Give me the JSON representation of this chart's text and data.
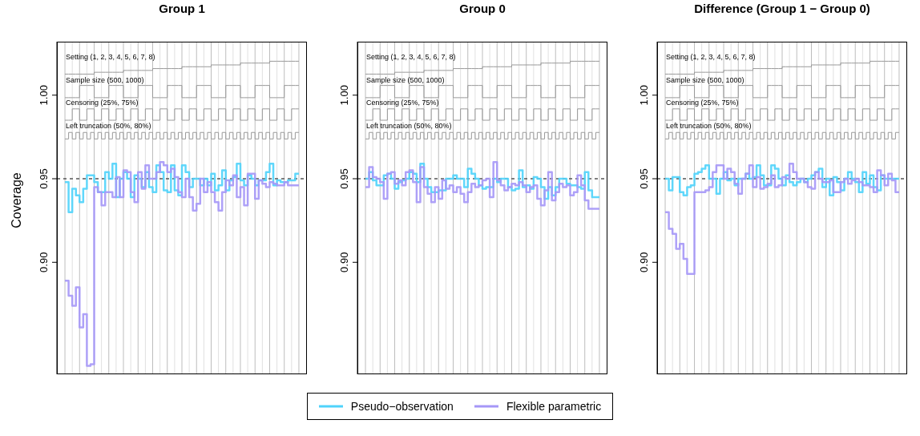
{
  "chart_data": [
    {
      "type": "step",
      "title": "Group 1",
      "ylabel": "Coverage",
      "categories": [
        null,
        null,
        null,
        null,
        null,
        null,
        null,
        null,
        null,
        null,
        null,
        null,
        null,
        null,
        null,
        null,
        null,
        null,
        null,
        null,
        null,
        null,
        null,
        null,
        null,
        null,
        null,
        null,
        null,
        null,
        null,
        null,
        null,
        null,
        null,
        null,
        null,
        null,
        null,
        null,
        null,
        null,
        null,
        null,
        null,
        null,
        null,
        null,
        null,
        null,
        null,
        null,
        null,
        null,
        null,
        null,
        null,
        null,
        null,
        null,
        null,
        null,
        null,
        null
      ],
      "ylim": [
        0.833,
        1.032
      ],
      "yticks": [
        {
          "value": 0.9,
          "label": "0.90"
        },
        {
          "value": 0.95,
          "label": "0.95"
        },
        {
          "value": 1.0,
          "label": "1.00"
        }
      ],
      "grid": "x",
      "marker": "none",
      "line_style": "solid",
      "legend": "bottom",
      "ref_lines": [
        {
          "axis": "y",
          "value": 0.95,
          "color": "#555555",
          "line_style": "dashed"
        }
      ],
      "annotations": [
        "Setting (1, 2, 3, 4, 5, 6, 7, 8)",
        "Sample size (500, 1000)",
        "Censoring (25%, 75%)",
        "Left truncation (50%, 80%)"
      ],
      "series": [
        {
          "color": "#999999",
          "values": [
            1.0126,
            1.0126,
            1.0126,
            1.0126,
            1.0126,
            1.0126,
            1.0126,
            1.0126,
            1.0137,
            1.0137,
            1.0137,
            1.0137,
            1.0137,
            1.0137,
            1.0137,
            1.0137,
            1.0148,
            1.0148,
            1.0148,
            1.0148,
            1.0148,
            1.0148,
            1.0148,
            1.0148,
            1.0159,
            1.0159,
            1.0159,
            1.0159,
            1.0159,
            1.0159,
            1.0159,
            1.0159,
            1.017,
            1.017,
            1.017,
            1.017,
            1.017,
            1.017,
            1.017,
            1.017,
            1.0181,
            1.0181,
            1.0181,
            1.0181,
            1.0181,
            1.0181,
            1.0181,
            1.0181,
            1.0192,
            1.0192,
            1.0192,
            1.0192,
            1.0192,
            1.0192,
            1.0192,
            1.0192,
            1.0203,
            1.0203,
            1.0203,
            1.0203,
            1.0203,
            1.0203,
            1.0203,
            1.0203
          ]
        },
        {
          "color": "#999999",
          "values": [
            0.9985,
            0.9985,
            0.9985,
            0.9985,
            1.0058,
            1.0058,
            1.0058,
            1.0058,
            0.9985,
            0.9985,
            0.9985,
            0.9985,
            1.0058,
            1.0058,
            1.0058,
            1.0058,
            0.9985,
            0.9985,
            0.9985,
            0.9985,
            1.0058,
            1.0058,
            1.0058,
            1.0058,
            0.9985,
            0.9985,
            0.9985,
            0.9985,
            1.0058,
            1.0058,
            1.0058,
            1.0058,
            0.9985,
            0.9985,
            0.9985,
            0.9985,
            1.0058,
            1.0058,
            1.0058,
            1.0058,
            0.9985,
            0.9985,
            0.9985,
            0.9985,
            1.0058,
            1.0058,
            1.0058,
            1.0058,
            0.9985,
            0.9985,
            0.9985,
            0.9985,
            1.0058,
            1.0058,
            1.0058,
            1.0058,
            0.9985,
            0.9985,
            0.9985,
            0.9985,
            1.0058,
            1.0058,
            1.0058,
            1.0058
          ]
        },
        {
          "color": "#999999",
          "values": [
            0.985,
            0.985,
            0.9918,
            0.9918,
            0.985,
            0.985,
            0.9918,
            0.9918,
            0.985,
            0.985,
            0.9918,
            0.9918,
            0.985,
            0.985,
            0.9918,
            0.9918,
            0.985,
            0.985,
            0.9918,
            0.9918,
            0.985,
            0.985,
            0.9918,
            0.9918,
            0.985,
            0.985,
            0.9918,
            0.9918,
            0.985,
            0.985,
            0.9918,
            0.9918,
            0.985,
            0.985,
            0.9918,
            0.9918,
            0.985,
            0.985,
            0.9918,
            0.9918,
            0.985,
            0.985,
            0.9918,
            0.9918,
            0.985,
            0.985,
            0.9918,
            0.9918,
            0.985,
            0.985,
            0.9918,
            0.9918,
            0.985,
            0.985,
            0.9918,
            0.9918,
            0.985,
            0.985,
            0.9918,
            0.9918,
            0.985,
            0.985,
            0.9918,
            0.9918
          ]
        },
        {
          "color": "#999999",
          "values": [
            0.9738,
            0.9777,
            0.9738,
            0.9777,
            0.9738,
            0.9777,
            0.9738,
            0.9777,
            0.9738,
            0.9777,
            0.9738,
            0.9777,
            0.9738,
            0.9777,
            0.9738,
            0.9777,
            0.9738,
            0.9777,
            0.9738,
            0.9777,
            0.9738,
            0.9777,
            0.9738,
            0.9777,
            0.9738,
            0.9777,
            0.9738,
            0.9777,
            0.9738,
            0.9777,
            0.9738,
            0.9777,
            0.9738,
            0.9777,
            0.9738,
            0.9777,
            0.9738,
            0.9777,
            0.9738,
            0.9777,
            0.9738,
            0.9777,
            0.9738,
            0.9777,
            0.9738,
            0.9777,
            0.9738,
            0.9777,
            0.9738,
            0.9777,
            0.9738,
            0.9777,
            0.9738,
            0.9777,
            0.9738,
            0.9777,
            0.9738,
            0.9777,
            0.9738,
            0.9777,
            0.9738,
            0.9777,
            0.9738,
            0.9777
          ]
        },
        {
          "name": "Pseudo−observation",
          "color": "#4fd3fb",
          "values": [
            0.948,
            0.93,
            0.944,
            0.94,
            0.936,
            0.944,
            0.952,
            0.952,
            0.948,
            0.942,
            0.942,
            0.954,
            0.95,
            0.959,
            0.939,
            0.95,
            0.954,
            0.95,
            0.939,
            0.952,
            0.95,
            0.945,
            0.954,
            0.945,
            0.942,
            0.958,
            0.954,
            0.943,
            0.942,
            0.958,
            0.943,
            0.94,
            0.958,
            0.954,
            0.945,
            0.95,
            0.95,
            0.946,
            0.95,
            0.946,
            0.953,
            0.943,
            0.946,
            0.955,
            0.943,
            0.949,
            0.951,
            0.959,
            0.949,
            0.946,
            0.952,
            0.95,
            0.946,
            0.949,
            0.949,
            0.954,
            0.959,
            0.946,
            0.949,
            0.948,
            0.948,
            0.949,
            0.949,
            0.953
          ]
        },
        {
          "name": "Flexible parametric",
          "color": "#a597f7",
          "values": [
            0.889,
            0.88,
            0.874,
            0.885,
            0.861,
            0.869,
            0.838,
            0.839,
            0.945,
            0.942,
            0.934,
            0.942,
            0.942,
            0.939,
            0.951,
            0.939,
            0.955,
            0.954,
            0.942,
            0.936,
            0.954,
            0.944,
            0.958,
            0.95,
            0.95,
            0.954,
            0.96,
            0.958,
            0.954,
            0.956,
            0.951,
            0.942,
            0.939,
            0.95,
            0.939,
            0.931,
            0.935,
            0.95,
            0.942,
            0.948,
            0.942,
            0.936,
            0.931,
            0.942,
            0.949,
            0.946,
            0.952,
            0.939,
            0.945,
            0.934,
            0.953,
            0.953,
            0.938,
            0.949,
            0.947,
            0.945,
            0.948,
            0.947,
            0.946,
            0.946,
            0.948,
            0.946,
            0.946,
            0.946
          ]
        }
      ]
    },
    {
      "type": "step",
      "title": "Group 0",
      "categories": [
        null,
        null,
        null,
        null,
        null,
        null,
        null,
        null,
        null,
        null,
        null,
        null,
        null,
        null,
        null,
        null,
        null,
        null,
        null,
        null,
        null,
        null,
        null,
        null,
        null,
        null,
        null,
        null,
        null,
        null,
        null,
        null,
        null,
        null,
        null,
        null,
        null,
        null,
        null,
        null,
        null,
        null,
        null,
        null,
        null,
        null,
        null,
        null,
        null,
        null,
        null,
        null,
        null,
        null,
        null,
        null,
        null,
        null,
        null,
        null,
        null,
        null,
        null,
        null
      ],
      "ylim": [
        0.833,
        1.032
      ],
      "yticks": [
        {
          "value": 0.9,
          "label": "0.90"
        },
        {
          "value": 0.95,
          "label": "0.95"
        },
        {
          "value": 1.0,
          "label": "1.00"
        }
      ],
      "grid": "x",
      "marker": "none",
      "line_style": "solid",
      "ref_lines": [
        {
          "axis": "y",
          "value": 0.95,
          "color": "#555555",
          "line_style": "dashed"
        }
      ],
      "annotations": [
        "Setting (1, 2, 3, 4, 5, 6, 7, 8)",
        "Sample size (500, 1000)",
        "Censoring (25%, 75%)",
        "Left truncation (50%, 80%)"
      ],
      "series": [
        {
          "color": "#999999",
          "values": [
            1.0126,
            1.0126,
            1.0126,
            1.0126,
            1.0126,
            1.0126,
            1.0126,
            1.0126,
            1.0137,
            1.0137,
            1.0137,
            1.0137,
            1.0137,
            1.0137,
            1.0137,
            1.0137,
            1.0148,
            1.0148,
            1.0148,
            1.0148,
            1.0148,
            1.0148,
            1.0148,
            1.0148,
            1.0159,
            1.0159,
            1.0159,
            1.0159,
            1.0159,
            1.0159,
            1.0159,
            1.0159,
            1.017,
            1.017,
            1.017,
            1.017,
            1.017,
            1.017,
            1.017,
            1.017,
            1.0181,
            1.0181,
            1.0181,
            1.0181,
            1.0181,
            1.0181,
            1.0181,
            1.0181,
            1.0192,
            1.0192,
            1.0192,
            1.0192,
            1.0192,
            1.0192,
            1.0192,
            1.0192,
            1.0203,
            1.0203,
            1.0203,
            1.0203,
            1.0203,
            1.0203,
            1.0203,
            1.0203
          ]
        },
        {
          "color": "#999999",
          "values": [
            0.9985,
            0.9985,
            0.9985,
            0.9985,
            1.0058,
            1.0058,
            1.0058,
            1.0058,
            0.9985,
            0.9985,
            0.9985,
            0.9985,
            1.0058,
            1.0058,
            1.0058,
            1.0058,
            0.9985,
            0.9985,
            0.9985,
            0.9985,
            1.0058,
            1.0058,
            1.0058,
            1.0058,
            0.9985,
            0.9985,
            0.9985,
            0.9985,
            1.0058,
            1.0058,
            1.0058,
            1.0058,
            0.9985,
            0.9985,
            0.9985,
            0.9985,
            1.0058,
            1.0058,
            1.0058,
            1.0058,
            0.9985,
            0.9985,
            0.9985,
            0.9985,
            1.0058,
            1.0058,
            1.0058,
            1.0058,
            0.9985,
            0.9985,
            0.9985,
            0.9985,
            1.0058,
            1.0058,
            1.0058,
            1.0058,
            0.9985,
            0.9985,
            0.9985,
            0.9985,
            1.0058,
            1.0058,
            1.0058,
            1.0058
          ]
        },
        {
          "color": "#999999",
          "values": [
            0.985,
            0.985,
            0.9918,
            0.9918,
            0.985,
            0.985,
            0.9918,
            0.9918,
            0.985,
            0.985,
            0.9918,
            0.9918,
            0.985,
            0.985,
            0.9918,
            0.9918,
            0.985,
            0.985,
            0.9918,
            0.9918,
            0.985,
            0.985,
            0.9918,
            0.9918,
            0.985,
            0.985,
            0.9918,
            0.9918,
            0.985,
            0.985,
            0.9918,
            0.9918,
            0.985,
            0.985,
            0.9918,
            0.9918,
            0.985,
            0.985,
            0.9918,
            0.9918,
            0.985,
            0.985,
            0.9918,
            0.9918,
            0.985,
            0.985,
            0.9918,
            0.9918,
            0.985,
            0.985,
            0.9918,
            0.9918,
            0.985,
            0.985,
            0.9918,
            0.9918,
            0.985,
            0.985,
            0.9918,
            0.9918,
            0.985,
            0.985,
            0.9918,
            0.9918
          ]
        },
        {
          "color": "#999999",
          "values": [
            0.9738,
            0.9777,
            0.9738,
            0.9777,
            0.9738,
            0.9777,
            0.9738,
            0.9777,
            0.9738,
            0.9777,
            0.9738,
            0.9777,
            0.9738,
            0.9777,
            0.9738,
            0.9777,
            0.9738,
            0.9777,
            0.9738,
            0.9777,
            0.9738,
            0.9777,
            0.9738,
            0.9777,
            0.9738,
            0.9777,
            0.9738,
            0.9777,
            0.9738,
            0.9777,
            0.9738,
            0.9777,
            0.9738,
            0.9777,
            0.9738,
            0.9777,
            0.9738,
            0.9777,
            0.9738,
            0.9777,
            0.9738,
            0.9777,
            0.9738,
            0.9777,
            0.9738,
            0.9777,
            0.9738,
            0.9777,
            0.9738,
            0.9777,
            0.9738,
            0.9777,
            0.9738,
            0.9777,
            0.9738,
            0.9777,
            0.9738,
            0.9777,
            0.9738,
            0.9777,
            0.9738,
            0.9777,
            0.9738,
            0.9777
          ]
        },
        {
          "color": "#4fd3fb",
          "values": [
            0.95,
            0.954,
            0.949,
            0.946,
            0.946,
            0.952,
            0.953,
            0.95,
            0.944,
            0.948,
            0.949,
            0.95,
            0.954,
            0.953,
            0.948,
            0.959,
            0.95,
            0.945,
            0.942,
            0.942,
            0.943,
            0.943,
            0.95,
            0.95,
            0.952,
            0.95,
            0.95,
            0.945,
            0.956,
            0.953,
            0.95,
            0.946,
            0.944,
            0.945,
            0.945,
            0.95,
            0.948,
            0.95,
            0.95,
            0.945,
            0.943,
            0.944,
            0.955,
            0.945,
            0.946,
            0.944,
            0.951,
            0.95,
            0.945,
            0.938,
            0.945,
            0.94,
            0.945,
            0.95,
            0.95,
            0.947,
            0.946,
            0.946,
            0.945,
            0.944,
            0.954,
            0.943,
            0.939,
            0.939
          ]
        },
        {
          "color": "#a597f7",
          "values": [
            0.945,
            0.957,
            0.951,
            0.95,
            0.948,
            0.938,
            0.953,
            0.954,
            0.947,
            0.949,
            0.946,
            0.954,
            0.955,
            0.948,
            0.936,
            0.957,
            0.945,
            0.941,
            0.936,
            0.945,
            0.938,
            0.949,
            0.944,
            0.946,
            0.942,
            0.945,
            0.941,
            0.936,
            0.942,
            0.947,
            0.945,
            0.946,
            0.949,
            0.95,
            0.939,
            0.96,
            0.949,
            0.946,
            0.943,
            0.945,
            0.947,
            0.946,
            0.948,
            0.946,
            0.942,
            0.945,
            0.946,
            0.938,
            0.934,
            0.943,
            0.954,
            0.937,
            0.942,
            0.947,
            0.945,
            0.946,
            0.94,
            0.942,
            0.952,
            0.946,
            0.937,
            0.932,
            0.932,
            0.932
          ]
        }
      ]
    },
    {
      "type": "step",
      "title": "Difference (Group 1 − Group 0)",
      "categories": [
        null,
        null,
        null,
        null,
        null,
        null,
        null,
        null,
        null,
        null,
        null,
        null,
        null,
        null,
        null,
        null,
        null,
        null,
        null,
        null,
        null,
        null,
        null,
        null,
        null,
        null,
        null,
        null,
        null,
        null,
        null,
        null,
        null,
        null,
        null,
        null,
        null,
        null,
        null,
        null,
        null,
        null,
        null,
        null,
        null,
        null,
        null,
        null,
        null,
        null,
        null,
        null,
        null,
        null,
        null,
        null,
        null,
        null,
        null,
        null,
        null,
        null,
        null,
        null
      ],
      "ylim": [
        0.833,
        1.032
      ],
      "yticks": [
        {
          "value": 0.9,
          "label": "0.90"
        },
        {
          "value": 0.95,
          "label": "0.95"
        },
        {
          "value": 1.0,
          "label": "1.00"
        }
      ],
      "grid": "x",
      "marker": "none",
      "line_style": "solid",
      "ref_lines": [
        {
          "axis": "y",
          "value": 0.95,
          "color": "#555555",
          "line_style": "dashed"
        }
      ],
      "annotations": [
        "Setting (1, 2, 3, 4, 5, 6, 7, 8)",
        "Sample size (500, 1000)",
        "Censoring (25%, 75%)",
        "Left truncation (50%, 80%)"
      ],
      "series": [
        {
          "color": "#999999",
          "values": [
            1.0126,
            1.0126,
            1.0126,
            1.0126,
            1.0126,
            1.0126,
            1.0126,
            1.0126,
            1.0137,
            1.0137,
            1.0137,
            1.0137,
            1.0137,
            1.0137,
            1.0137,
            1.0137,
            1.0148,
            1.0148,
            1.0148,
            1.0148,
            1.0148,
            1.0148,
            1.0148,
            1.0148,
            1.0159,
            1.0159,
            1.0159,
            1.0159,
            1.0159,
            1.0159,
            1.0159,
            1.0159,
            1.017,
            1.017,
            1.017,
            1.017,
            1.017,
            1.017,
            1.017,
            1.017,
            1.0181,
            1.0181,
            1.0181,
            1.0181,
            1.0181,
            1.0181,
            1.0181,
            1.0181,
            1.0192,
            1.0192,
            1.0192,
            1.0192,
            1.0192,
            1.0192,
            1.0192,
            1.0192,
            1.0203,
            1.0203,
            1.0203,
            1.0203,
            1.0203,
            1.0203,
            1.0203,
            1.0203
          ]
        },
        {
          "color": "#999999",
          "values": [
            0.9985,
            0.9985,
            0.9985,
            0.9985,
            1.0058,
            1.0058,
            1.0058,
            1.0058,
            0.9985,
            0.9985,
            0.9985,
            0.9985,
            1.0058,
            1.0058,
            1.0058,
            1.0058,
            0.9985,
            0.9985,
            0.9985,
            0.9985,
            1.0058,
            1.0058,
            1.0058,
            1.0058,
            0.9985,
            0.9985,
            0.9985,
            0.9985,
            1.0058,
            1.0058,
            1.0058,
            1.0058,
            0.9985,
            0.9985,
            0.9985,
            0.9985,
            1.0058,
            1.0058,
            1.0058,
            1.0058,
            0.9985,
            0.9985,
            0.9985,
            0.9985,
            1.0058,
            1.0058,
            1.0058,
            1.0058,
            0.9985,
            0.9985,
            0.9985,
            0.9985,
            1.0058,
            1.0058,
            1.0058,
            1.0058,
            0.9985,
            0.9985,
            0.9985,
            0.9985,
            1.0058,
            1.0058,
            1.0058,
            1.0058
          ]
        },
        {
          "color": "#999999",
          "values": [
            0.985,
            0.985,
            0.9918,
            0.9918,
            0.985,
            0.985,
            0.9918,
            0.9918,
            0.985,
            0.985,
            0.9918,
            0.9918,
            0.985,
            0.985,
            0.9918,
            0.9918,
            0.985,
            0.985,
            0.9918,
            0.9918,
            0.985,
            0.985,
            0.9918,
            0.9918,
            0.985,
            0.985,
            0.9918,
            0.9918,
            0.985,
            0.985,
            0.9918,
            0.9918,
            0.985,
            0.985,
            0.9918,
            0.9918,
            0.985,
            0.985,
            0.9918,
            0.9918,
            0.985,
            0.985,
            0.9918,
            0.9918,
            0.985,
            0.985,
            0.9918,
            0.9918,
            0.985,
            0.985,
            0.9918,
            0.9918,
            0.985,
            0.985,
            0.9918,
            0.9918,
            0.985,
            0.985,
            0.9918,
            0.9918,
            0.985,
            0.985,
            0.9918,
            0.9918
          ]
        },
        {
          "color": "#999999",
          "values": [
            0.9738,
            0.9777,
            0.9738,
            0.9777,
            0.9738,
            0.9777,
            0.9738,
            0.9777,
            0.9738,
            0.9777,
            0.9738,
            0.9777,
            0.9738,
            0.9777,
            0.9738,
            0.9777,
            0.9738,
            0.9777,
            0.9738,
            0.9777,
            0.9738,
            0.9777,
            0.9738,
            0.9777,
            0.9738,
            0.9777,
            0.9738,
            0.9777,
            0.9738,
            0.9777,
            0.9738,
            0.9777,
            0.9738,
            0.9777,
            0.9738,
            0.9777,
            0.9738,
            0.9777,
            0.9738,
            0.9777,
            0.9738,
            0.9777,
            0.9738,
            0.9777,
            0.9738,
            0.9777,
            0.9738,
            0.9777,
            0.9738,
            0.9777,
            0.9738,
            0.9777,
            0.9738,
            0.9777,
            0.9738,
            0.9777,
            0.9738,
            0.9777,
            0.9738,
            0.9777,
            0.9738,
            0.9777,
            0.9738,
            0.9777
          ]
        },
        {
          "color": "#4fd3fb",
          "values": [
            0.95,
            0.943,
            0.951,
            0.951,
            0.942,
            0.94,
            0.945,
            0.946,
            0.953,
            0.954,
            0.956,
            0.958,
            0.95,
            0.95,
            0.941,
            0.95,
            0.954,
            0.949,
            0.95,
            0.946,
            0.95,
            0.95,
            0.953,
            0.95,
            0.951,
            0.958,
            0.952,
            0.946,
            0.946,
            0.958,
            0.956,
            0.95,
            0.946,
            0.952,
            0.948,
            0.946,
            0.948,
            0.95,
            0.948,
            0.95,
            0.952,
            0.954,
            0.956,
            0.945,
            0.95,
            0.94,
            0.951,
            0.948,
            0.943,
            0.95,
            0.954,
            0.95,
            0.948,
            0.942,
            0.954,
            0.947,
            0.952,
            0.945,
            0.943,
            0.952,
            0.95,
            0.95,
            0.95,
            0.95
          ]
        },
        {
          "color": "#a597f7",
          "values": [
            0.93,
            0.92,
            0.917,
            0.908,
            0.911,
            0.902,
            0.893,
            0.893,
            0.942,
            0.942,
            0.942,
            0.943,
            0.945,
            0.954,
            0.958,
            0.958,
            0.95,
            0.956,
            0.954,
            0.947,
            0.941,
            0.95,
            0.953,
            0.958,
            0.945,
            0.951,
            0.944,
            0.945,
            0.947,
            0.952,
            0.945,
            0.946,
            0.951,
            0.95,
            0.959,
            0.954,
            0.95,
            0.95,
            0.948,
            0.945,
            0.944,
            0.954,
            0.95,
            0.948,
            0.948,
            0.949,
            0.942,
            0.942,
            0.948,
            0.95,
            0.947,
            0.949,
            0.95,
            0.948,
            0.946,
            0.946,
            0.945,
            0.942,
            0.955,
            0.952,
            0.946,
            0.953,
            0.949,
            0.942
          ]
        }
      ]
    }
  ]
}
